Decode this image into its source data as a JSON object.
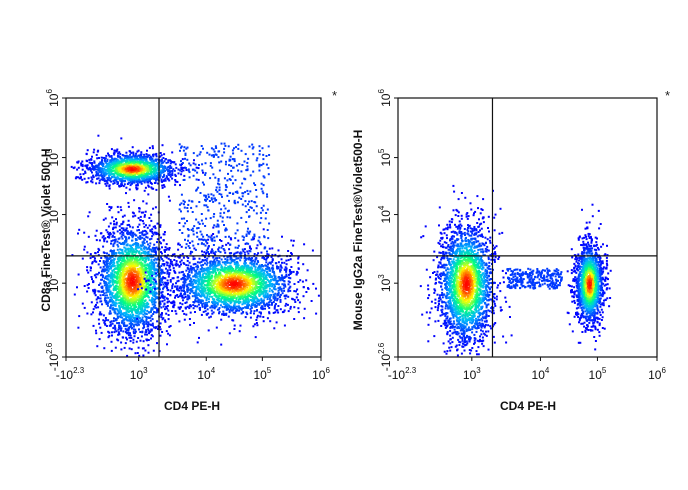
{
  "chart_data": [
    {
      "type": "scatter",
      "plot_kind": "flow-cytometry-density-dot-plot",
      "xlabel": "CD4 PE-H",
      "ylabel": "CD8a  FineTest® Violet 500-H",
      "x_scale": "biexponential",
      "y_scale": "biexponential",
      "x_ticks": [
        "-10^2.3",
        "10^3",
        "10^4",
        "10^5",
        "10^6"
      ],
      "y_ticks": [
        "10^6",
        "10^5",
        "10^4",
        "10^3",
        "-10^2.6"
      ],
      "xlim": [
        "-10^2.3",
        "10^6"
      ],
      "ylim": [
        "-10^2.6",
        "10^6"
      ],
      "quadrant_gate": {
        "x": 2000,
        "y": 2500
      },
      "marker": "*",
      "colormap": [
        "#0000ff",
        "#00b4ff",
        "#00ff80",
        "#ffff00",
        "#ff0000"
      ],
      "populations": [
        {
          "x_center": 300,
          "y_center": 65000,
          "density": "high"
        },
        {
          "x_center": 300,
          "y_center": 1100,
          "density": "high"
        },
        {
          "x_center": 30000,
          "y_center": 1000,
          "density": "high"
        },
        {
          "x_center": 20000,
          "y_center": 20000,
          "density": "low"
        }
      ]
    },
    {
      "type": "scatter",
      "plot_kind": "flow-cytometry-density-dot-plot",
      "xlabel": "CD4 PE-H",
      "ylabel": "Mouse IgG2a  FineTest®Violet500-H",
      "x_scale": "biexponential",
      "y_scale": "biexponential",
      "x_ticks": [
        "-10^2.3",
        "10^3",
        "10^4",
        "10^5",
        "10^6"
      ],
      "y_ticks": [
        "10^6",
        "10^5",
        "10^4",
        "10^3",
        "-10^2.6"
      ],
      "xlim": [
        "-10^2.3",
        "10^6"
      ],
      "ylim": [
        "-10^2.6",
        "10^6"
      ],
      "quadrant_gate": {
        "x": 2000,
        "y": 2500
      },
      "marker": "*",
      "colormap": [
        "#0000ff",
        "#00b4ff",
        "#00ff80",
        "#ffff00",
        "#ff0000"
      ],
      "populations": [
        {
          "x_center": 350,
          "y_center": 1000,
          "density": "high"
        },
        {
          "x_center": 70000,
          "y_center": 1000,
          "density": "high"
        },
        {
          "x_center": 8000,
          "y_center": 1200,
          "density": "low"
        }
      ]
    }
  ]
}
